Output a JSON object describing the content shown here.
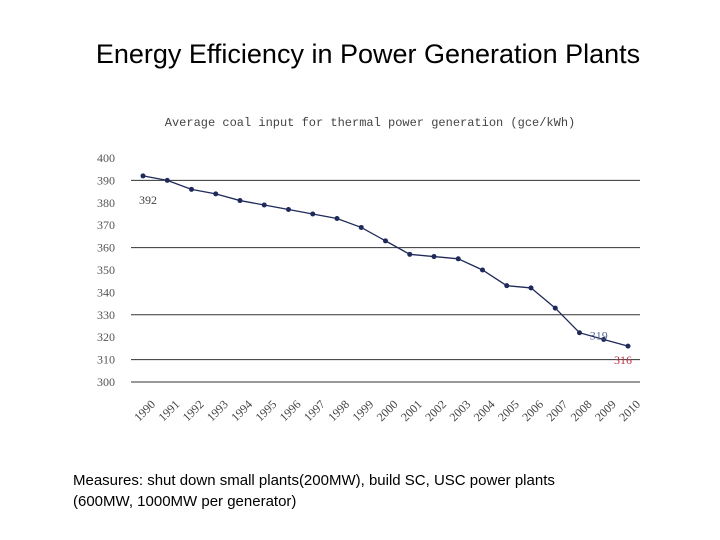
{
  "title": "Energy Efficiency in Power Generation Plants",
  "chart_data": {
    "type": "line",
    "title": "Average coal input for thermal power generation (gce/kWh)",
    "categories": [
      "1990",
      "1991",
      "1992",
      "1993",
      "1994",
      "1995",
      "1996",
      "1997",
      "1998",
      "1999",
      "2000",
      "2001",
      "2002",
      "2003",
      "2004",
      "2005",
      "2006",
      "2007",
      "2008",
      "2009",
      "2010"
    ],
    "series": [
      {
        "name": "coal input",
        "color": "#1f2a5a",
        "values": [
          392,
          390,
          386,
          384,
          381,
          379,
          377,
          375,
          373,
          369,
          363,
          357,
          356,
          355,
          350,
          343,
          342,
          333,
          322,
          319,
          316
        ],
        "value_labels": [
          392,
          null,
          null,
          null,
          null,
          null,
          null,
          null,
          null,
          null,
          null,
          null,
          null,
          null,
          null,
          null,
          null,
          null,
          null,
          319,
          316
        ],
        "label_colors": [
          "#444444",
          "#5a6a9a",
          "#c0304a"
        ]
      }
    ],
    "ylim": [
      300,
      400
    ],
    "yticks": [
      300,
      310,
      320,
      330,
      340,
      350,
      360,
      370,
      380,
      390,
      400
    ],
    "grid_values": [
      310,
      330,
      360,
      390
    ]
  },
  "footnote": [
    "Measures: shut down small plants(200MW), build SC, USC power plants",
    "(600MW, 1000MW per generator)"
  ]
}
